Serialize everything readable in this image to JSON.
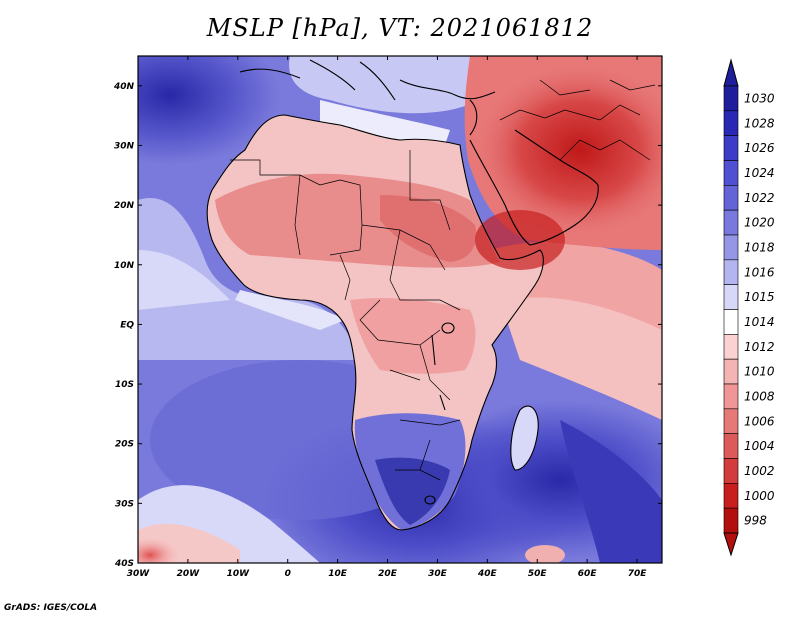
{
  "title": "MSLP [hPa], VT: 2021061812",
  "credit": "GrADS: IGES/COLA",
  "lat_labels": [
    "40N",
    "30N",
    "20N",
    "10N",
    "EQ",
    "10S",
    "20S",
    "30S",
    "40S"
  ],
  "lon_labels": [
    "30W",
    "20W",
    "10W",
    "0",
    "10E",
    "20E",
    "30E",
    "40E",
    "50E",
    "60E",
    "70E"
  ],
  "colorbar": {
    "levels": [
      "1030",
      "1028",
      "1026",
      "1024",
      "1022",
      "1020",
      "1018",
      "1016",
      "1015",
      "1014",
      "1012",
      "1010",
      "1008",
      "1006",
      "1004",
      "1002",
      "1000",
      "998"
    ],
    "colors": [
      "#1e1e9c",
      "#2828b4",
      "#3c3cc8",
      "#5050d2",
      "#6464d8",
      "#7878de",
      "#9696e6",
      "#b4b4f0",
      "#d7d7f8",
      "#ffffff",
      "#fad2d2",
      "#f5b4b4",
      "#f09696",
      "#e67878",
      "#dc5a5a",
      "#d23c3c",
      "#c81e1e",
      "#b40f0f"
    ]
  },
  "map_data": {
    "extent": {
      "lon": [
        -30,
        75
      ],
      "lat": [
        -40,
        45
      ]
    },
    "field": "mean sea level pressure (hPa)"
  }
}
